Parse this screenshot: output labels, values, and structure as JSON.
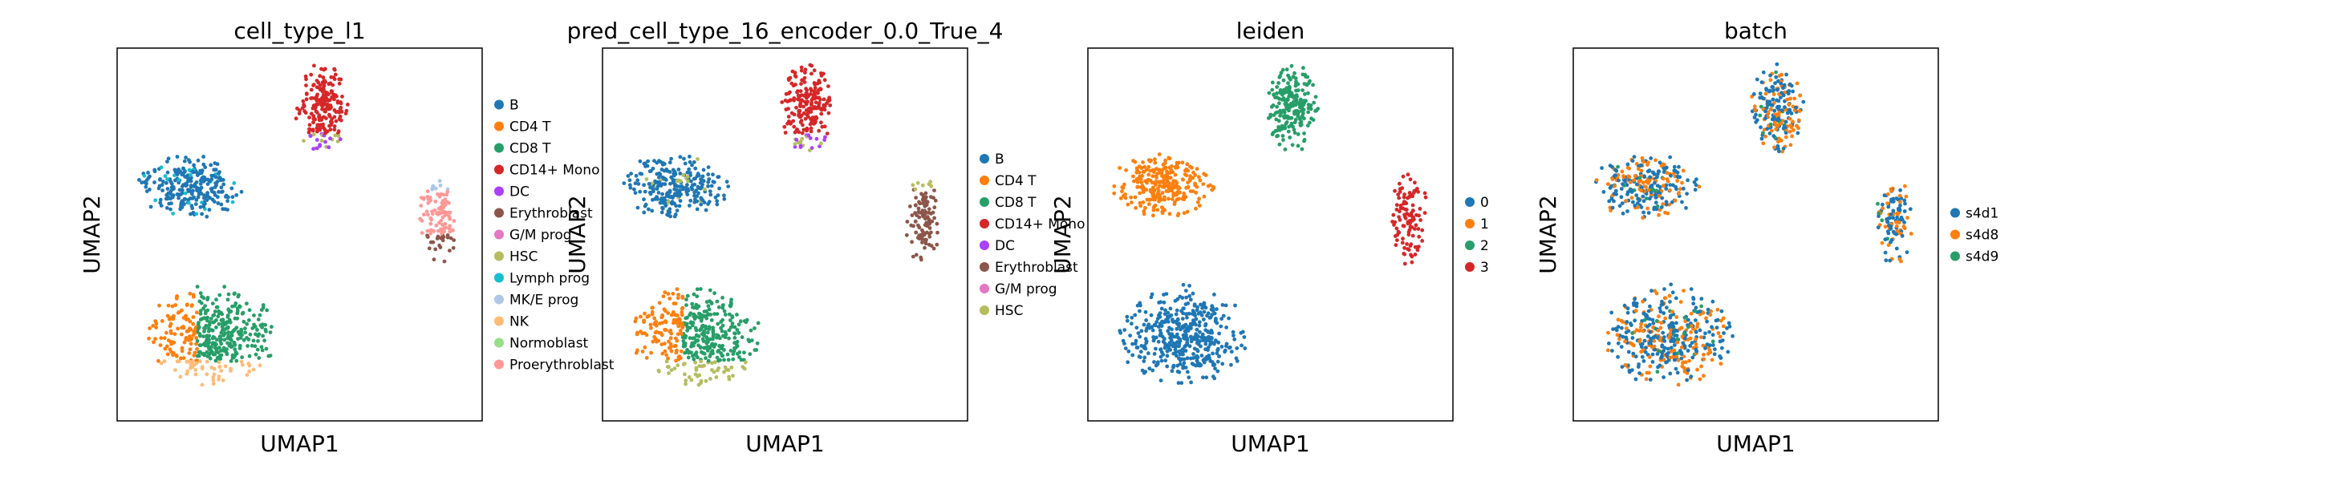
{
  "chart_data": [
    {
      "type": "scatter",
      "title": "cell_type_l1",
      "xlabel": "UMAP1",
      "ylabel": "UMAP2",
      "grid": false,
      "ticks": false,
      "legend_position": "right",
      "legend": [
        {
          "label": "B",
          "color": "#1f77b4"
        },
        {
          "label": "CD4 T",
          "color": "#ff7f0e"
        },
        {
          "label": "CD8 T",
          "color": "#279e68"
        },
        {
          "label": "CD14+ Mono",
          "color": "#d62728"
        },
        {
          "label": "DC",
          "color": "#aa40fc"
        },
        {
          "label": "Erythroblast",
          "color": "#8c564b"
        },
        {
          "label": "G/M prog",
          "color": "#e377c2"
        },
        {
          "label": "HSC",
          "color": "#b5bd61"
        },
        {
          "label": "Lymph prog",
          "color": "#17becf"
        },
        {
          "label": "MK/E prog",
          "color": "#aec7e8"
        },
        {
          "label": "NK",
          "color": "#ffbb78"
        },
        {
          "label": "Normoblast",
          "color": "#98df8a"
        },
        {
          "label": "Proerythroblast",
          "color": "#ff9896"
        }
      ]
    },
    {
      "type": "scatter",
      "title": "pred_cell_type_16_encoder_0.0_True_4",
      "xlabel": "UMAP1",
      "ylabel": "UMAP2",
      "grid": false,
      "ticks": false,
      "legend_position": "right",
      "legend": [
        {
          "label": "B",
          "color": "#1f77b4"
        },
        {
          "label": "CD4 T",
          "color": "#ff7f0e"
        },
        {
          "label": "CD8 T",
          "color": "#279e68"
        },
        {
          "label": "CD14+ Mono",
          "color": "#d62728"
        },
        {
          "label": "DC",
          "color": "#aa40fc"
        },
        {
          "label": "Erythroblast",
          "color": "#8c564b"
        },
        {
          "label": "G/M prog",
          "color": "#e377c2"
        },
        {
          "label": "HSC",
          "color": "#b5bd61"
        }
      ]
    },
    {
      "type": "scatter",
      "title": "leiden",
      "xlabel": "UMAP1",
      "ylabel": "UMAP2",
      "grid": false,
      "ticks": false,
      "legend_position": "right",
      "legend": [
        {
          "label": "0",
          "color": "#1f77b4"
        },
        {
          "label": "1",
          "color": "#ff7f0e"
        },
        {
          "label": "2",
          "color": "#279e68"
        },
        {
          "label": "3",
          "color": "#d62728"
        }
      ]
    },
    {
      "type": "scatter",
      "title": "batch",
      "xlabel": "UMAP1",
      "ylabel": "UMAP2",
      "grid": false,
      "ticks": false,
      "legend_position": "right",
      "legend": [
        {
          "label": "s4d1",
          "color": "#1f77b4"
        },
        {
          "label": "s4d8",
          "color": "#ff7f0e"
        },
        {
          "label": "s4d9",
          "color": "#279e68"
        }
      ]
    }
  ]
}
